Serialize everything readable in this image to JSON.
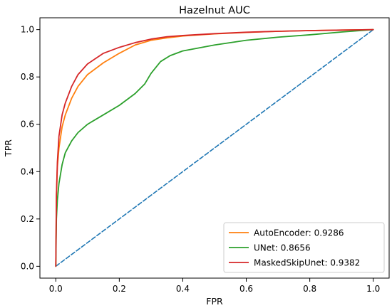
{
  "chart_data": {
    "type": "line",
    "title": "Hazelnut AUC",
    "xlabel": "FPR",
    "ylabel": "TPR",
    "xlim": [
      -0.05,
      1.05
    ],
    "ylim": [
      -0.05,
      1.05
    ],
    "xticks": [
      "0.0",
      "0.2",
      "0.4",
      "0.6",
      "0.8",
      "1.0"
    ],
    "yticks": [
      "0.0",
      "0.2",
      "0.4",
      "0.6",
      "0.8",
      "1.0"
    ],
    "grid": false,
    "legend_position": "lower-right",
    "series": [
      {
        "name": "AutoEncoder: 0.9286",
        "color": "#ff7f0e",
        "x": [
          0,
          0.002,
          0.005,
          0.01,
          0.02,
          0.03,
          0.05,
          0.07,
          0.1,
          0.15,
          0.2,
          0.25,
          0.3,
          0.35,
          0.4,
          0.5,
          0.6,
          0.7,
          0.8,
          0.9,
          1.0
        ],
        "y": [
          0,
          0.3,
          0.42,
          0.5,
          0.59,
          0.64,
          0.71,
          0.76,
          0.81,
          0.86,
          0.9,
          0.935,
          0.955,
          0.965,
          0.973,
          0.982,
          0.988,
          0.993,
          0.996,
          0.998,
          1.0
        ]
      },
      {
        "name": "UNet: 0.8656",
        "color": "#2ca02c",
        "x": [
          0,
          0.002,
          0.005,
          0.01,
          0.02,
          0.03,
          0.05,
          0.07,
          0.1,
          0.15,
          0.2,
          0.25,
          0.28,
          0.3,
          0.33,
          0.36,
          0.4,
          0.5,
          0.6,
          0.7,
          0.8,
          0.9,
          1.0
        ],
        "y": [
          0,
          0.2,
          0.28,
          0.35,
          0.43,
          0.48,
          0.53,
          0.565,
          0.6,
          0.64,
          0.68,
          0.73,
          0.77,
          0.815,
          0.865,
          0.89,
          0.91,
          0.935,
          0.955,
          0.968,
          0.978,
          0.99,
          1.0
        ]
      },
      {
        "name": "MaskedSkipUnet: 0.9382",
        "color": "#d62728",
        "x": [
          0,
          0.002,
          0.005,
          0.01,
          0.02,
          0.03,
          0.05,
          0.07,
          0.1,
          0.15,
          0.2,
          0.25,
          0.3,
          0.35,
          0.4,
          0.5,
          0.6,
          0.7,
          0.8,
          0.9,
          1.0
        ],
        "y": [
          0,
          0.3,
          0.44,
          0.55,
          0.64,
          0.69,
          0.76,
          0.81,
          0.855,
          0.9,
          0.925,
          0.945,
          0.96,
          0.97,
          0.975,
          0.983,
          0.989,
          0.993,
          0.996,
          0.998,
          1.0
        ]
      },
      {
        "name": "",
        "color": "#1f77b4",
        "dashed": true,
        "x": [
          0,
          1
        ],
        "y": [
          0,
          1
        ]
      }
    ]
  }
}
